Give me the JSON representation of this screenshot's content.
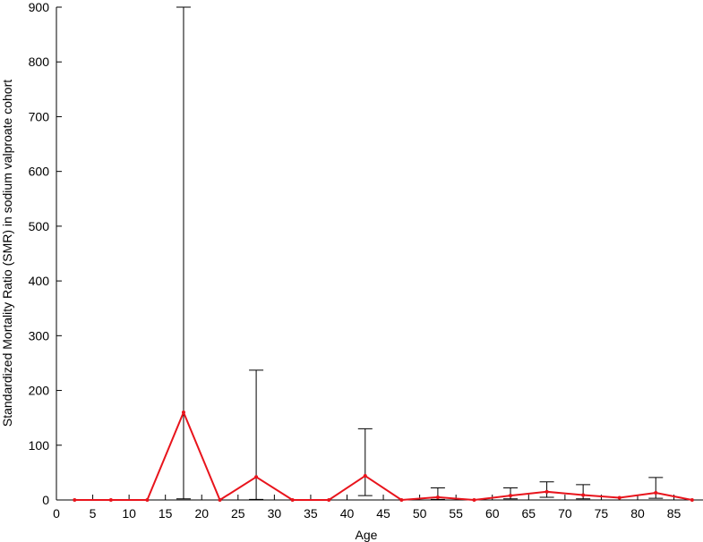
{
  "chart_data": {
    "type": "line",
    "x_label": "Age",
    "y_label": "Standardized Mortality Ratio (SMR) in sodium valproate cohort",
    "x": [
      2.5,
      7.5,
      12.5,
      17.5,
      22.5,
      27.5,
      32.5,
      37.5,
      42.5,
      47.5,
      52.5,
      57.5,
      62.5,
      67.5,
      72.5,
      77.5,
      82.5,
      87.5
    ],
    "values": [
      0,
      0,
      0,
      160,
      0,
      42,
      0,
      0,
      44,
      0,
      5,
      0,
      8,
      15,
      9,
      4,
      13,
      0
    ],
    "error_lower": [
      null,
      null,
      null,
      2,
      null,
      1,
      null,
      null,
      8,
      null,
      1,
      null,
      2,
      5,
      2,
      null,
      3,
      null
    ],
    "error_upper": [
      null,
      null,
      null,
      900,
      null,
      237,
      null,
      null,
      130,
      null,
      22,
      null,
      22,
      33,
      28,
      null,
      41,
      null
    ],
    "color": "#e8141c",
    "error_color": "#000000",
    "xlim": [
      0,
      89
    ],
    "xticks": [
      0,
      5,
      10,
      15,
      20,
      25,
      30,
      35,
      40,
      45,
      50,
      55,
      60,
      65,
      70,
      75,
      80,
      85
    ],
    "ylim": [
      0,
      900
    ],
    "yticks": [
      0,
      100,
      200,
      300,
      400,
      500,
      600,
      700,
      800,
      900
    ]
  }
}
